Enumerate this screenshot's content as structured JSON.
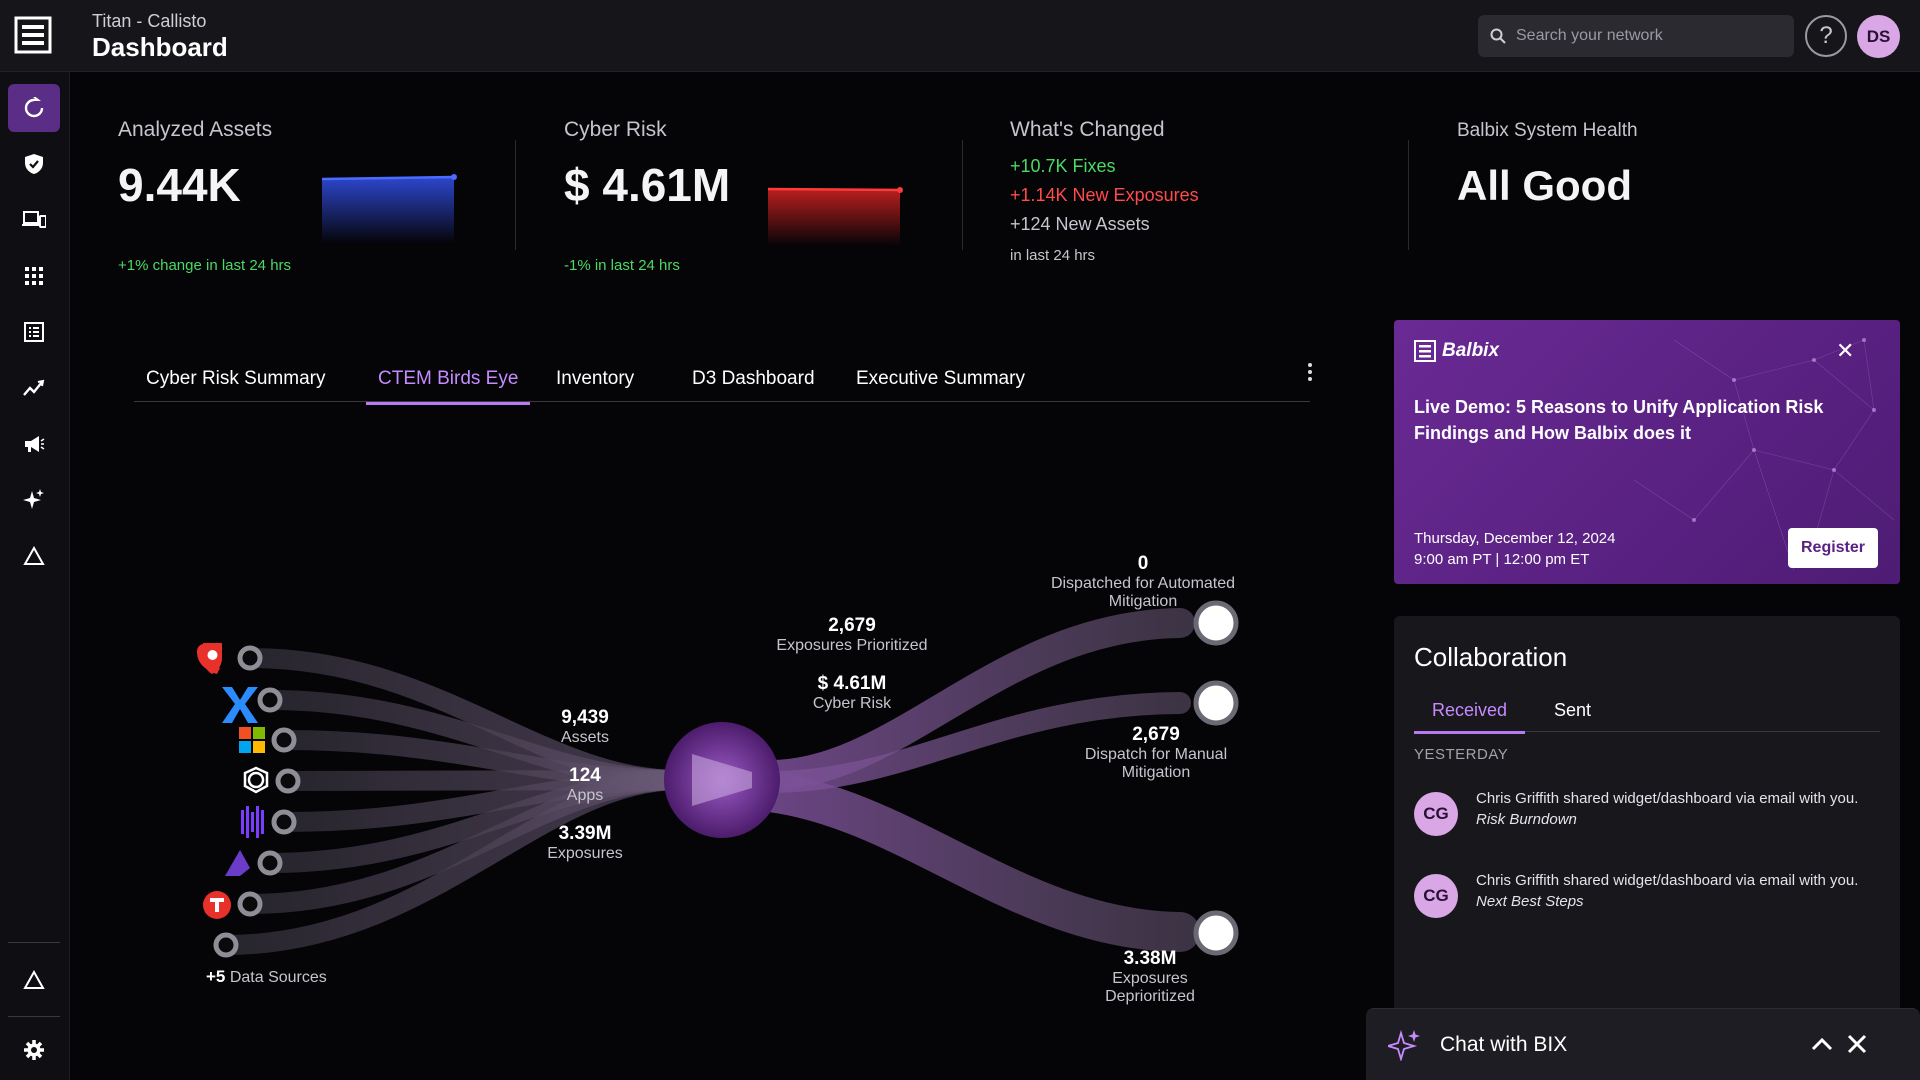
{
  "header": {
    "subtitle": "Titan - Callisto",
    "title": "Dashboard",
    "search_placeholder": "Search your network",
    "help_label": "?",
    "user_initials": "DS"
  },
  "kpis": {
    "analyzed_assets": {
      "label": "Analyzed Assets",
      "value": "9.44K",
      "change": "+1% change in last 24 hrs"
    },
    "cyber_risk": {
      "label": "Cyber Risk",
      "value": "$ 4.61M",
      "change": "-1% in last 24 hrs"
    },
    "whats_changed": {
      "label": "What's Changed",
      "fixes": "+10.7K Fixes",
      "new_exposures": "+1.14K New Exposures",
      "new_assets": "+124 New Assets",
      "period": "in last 24 hrs"
    },
    "system_health": {
      "label": "Balbix System Health",
      "value": "All Good"
    }
  },
  "tabs": [
    {
      "label": "Cyber Risk Summary"
    },
    {
      "label": "CTEM Birds Eye"
    },
    {
      "label": "Inventory"
    },
    {
      "label": "D3 Dashboard"
    },
    {
      "label": "Executive Summary"
    }
  ],
  "active_tab": "CTEM Birds Eye",
  "flow": {
    "data_sources_more": "+5",
    "data_sources_label": "Data Sources",
    "assets": {
      "value": "9,439",
      "label": "Assets"
    },
    "apps": {
      "value": "124",
      "label": "Apps"
    },
    "exposures": {
      "value": "3.39M",
      "label": "Exposures"
    },
    "prioritized": {
      "value": "2,679",
      "label": "Exposures Prioritized"
    },
    "cyber_risk": {
      "value": "$ 4.61M",
      "label": "Cyber Risk"
    },
    "automated": {
      "value": "0",
      "label": "Dispatched for Automated Mitigation"
    },
    "manual": {
      "value": "2,679",
      "label": "Dispatch for Manual Mitigation"
    },
    "deprioritized": {
      "value": "3.38M",
      "label": "Exposures Deprioritized"
    }
  },
  "promo": {
    "brand": "Balbix",
    "title": "Live Demo: 5 Reasons to Unify Application Risk Findings and How Balbix does it",
    "date": "Thursday, December 12, 2024",
    "time": "9:00 am PT | 12:00 pm ET",
    "register_label": "Register"
  },
  "collaboration": {
    "title": "Collaboration",
    "tabs": [
      "Received",
      "Sent"
    ],
    "section": "YESTERDAY",
    "messages": [
      {
        "initials": "CG",
        "text": "Chris Griffith shared widget/dashboard via email with you.",
        "item": "Risk Burndown"
      },
      {
        "initials": "CG",
        "text": "Chris Griffith shared widget/dashboard via email with you.",
        "item": "Next Best Steps"
      }
    ]
  },
  "chat": {
    "label": "Chat with BIX"
  },
  "colors": {
    "accent": "#b77af2",
    "positive": "#4cd964",
    "negative": "#ff4b4b",
    "promo_bg": "#5a2283"
  }
}
